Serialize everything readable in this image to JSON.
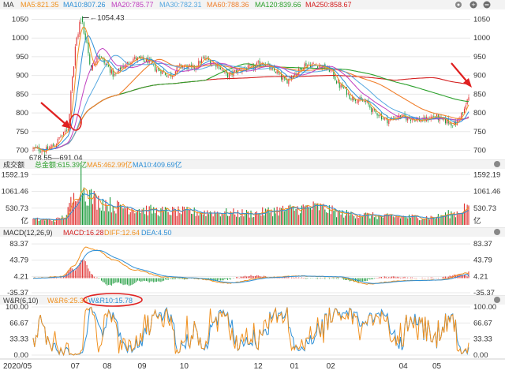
{
  "colors": {
    "up": "#e03030",
    "down": "#1a9a3a",
    "ma5": "#f0901e",
    "ma10": "#2d8fd6",
    "ma20": "#c040c0",
    "ma30": "#56a8e0",
    "ma60": "#f07f2c",
    "ma120": "#2ca02c",
    "ma250": "#d42020",
    "macd": "#d42020",
    "diff": "#f0901e",
    "dea": "#2d8fd6",
    "wr6": "#f0901e",
    "wr10": "#2d8fd6",
    "annotation": "#e02020",
    "grid": "#e8e8e8"
  },
  "panels": {
    "price": {
      "title": "MA",
      "legend": [
        {
          "label": "MA5:821.35",
          "color": "#f0901e"
        },
        {
          "label": "MA10:807.26",
          "color": "#2d8fd6"
        },
        {
          "label": "MA20:785.77",
          "color": "#c040c0"
        },
        {
          "label": "MA30:782.31",
          "color": "#56a8e0"
        },
        {
          "label": "MA60:788.36",
          "color": "#f07f2c"
        },
        {
          "label": "MA120:839.66",
          "color": "#2ca02c"
        },
        {
          "label": "MA250:858.67",
          "color": "#d42020"
        }
      ],
      "icons": [
        "gear-icon",
        "add-icon",
        "remove-icon"
      ]
    },
    "volume": {
      "title": "成交额",
      "legend": [
        {
          "label": "总金额:615.39亿",
          "color": "#2ca02c"
        },
        {
          "label": "MA5:462.99亿",
          "color": "#f0901e"
        },
        {
          "label": "MA10:409.69亿",
          "color": "#2d8fd6"
        }
      ],
      "unit": "亿",
      "icons": [
        "gear-icon"
      ]
    },
    "macd": {
      "title": "MACD(12,26,9)",
      "legend": [
        {
          "label": "MACD:16.28",
          "color": "#d42020"
        },
        {
          "label": "DIFF:12.64",
          "color": "#f0901e"
        },
        {
          "label": "DEA:4.50",
          "color": "#2d8fd6"
        }
      ],
      "icons": [
        "gear-icon"
      ]
    },
    "wr": {
      "title": "W&R(6,10)",
      "legend": [
        {
          "label": "W&R6:25.39",
          "color": "#f0901e"
        },
        {
          "label": "W&R10:15.78",
          "color": "#2d8fd6"
        }
      ],
      "icons": [
        "gear-icon"
      ]
    }
  },
  "chart_data": [
    {
      "type": "candlestick",
      "panel": "price",
      "title": "MA",
      "ylim": [
        680,
        1070
      ],
      "yticks": [
        "1050",
        "1000",
        "950",
        "900",
        "850",
        "800",
        "750",
        "700"
      ],
      "annotations": {
        "high_label": "1054.43",
        "low_label": "678.55—691.04"
      },
      "anchors": [
        [
          0,
          705
        ],
        [
          8,
          700
        ],
        [
          14,
          712
        ],
        [
          20,
          740
        ],
        [
          24,
          760
        ],
        [
          27,
          900
        ],
        [
          30,
          1000
        ],
        [
          33,
          1054
        ],
        [
          36,
          1000
        ],
        [
          40,
          920
        ],
        [
          45,
          955
        ],
        [
          50,
          930
        ],
        [
          56,
          900
        ],
        [
          62,
          925
        ],
        [
          70,
          945
        ],
        [
          78,
          940
        ],
        [
          86,
          915
        ],
        [
          94,
          900
        ],
        [
          102,
          925
        ],
        [
          110,
          920
        ],
        [
          118,
          945
        ],
        [
          126,
          930
        ],
        [
          134,
          900
        ],
        [
          142,
          915
        ],
        [
          150,
          920
        ],
        [
          158,
          935
        ],
        [
          166,
          912
        ],
        [
          174,
          885
        ],
        [
          180,
          905
        ],
        [
          188,
          930
        ],
        [
          196,
          928
        ],
        [
          204,
          915
        ],
        [
          212,
          870
        ],
        [
          220,
          840
        ],
        [
          228,
          830
        ],
        [
          236,
          800
        ],
        [
          244,
          780
        ],
        [
          252,
          790
        ],
        [
          260,
          785
        ],
        [
          268,
          780
        ],
        [
          276,
          790
        ],
        [
          284,
          778
        ],
        [
          290,
          770
        ],
        [
          296,
          800
        ],
        [
          300,
          840
        ]
      ],
      "series": [
        {
          "name": "MA5",
          "last": 821.35
        },
        {
          "name": "MA10",
          "last": 807.26
        },
        {
          "name": "MA20",
          "last": 785.77
        },
        {
          "name": "MA30",
          "last": 782.31
        },
        {
          "name": "MA60",
          "last": 788.36
        },
        {
          "name": "MA120",
          "last": 839.66
        },
        {
          "name": "MA250",
          "last": 858.67
        }
      ]
    },
    {
      "type": "bar",
      "panel": "volume",
      "title": "成交额",
      "ylim": [
        0,
        1700
      ],
      "yticks": [
        "1592.19",
        "1061.46",
        "530.73"
      ],
      "anchors": [
        [
          0,
          170
        ],
        [
          15,
          160
        ],
        [
          22,
          250
        ],
        [
          27,
          750
        ],
        [
          31,
          1250
        ],
        [
          33,
          1550
        ],
        [
          36,
          1000
        ],
        [
          45,
          750
        ],
        [
          60,
          560
        ],
        [
          90,
          430
        ],
        [
          120,
          400
        ],
        [
          150,
          360
        ],
        [
          170,
          470
        ],
        [
          195,
          560
        ],
        [
          215,
          350
        ],
        [
          245,
          260
        ],
        [
          275,
          240
        ],
        [
          290,
          360
        ],
        [
          300,
          615
        ]
      ],
      "series": [
        {
          "name": "总金额",
          "last": 615.39
        },
        {
          "name": "MA5",
          "last": 462.99
        },
        {
          "name": "MA10",
          "last": 409.69
        }
      ]
    },
    {
      "type": "bar",
      "panel": "macd",
      "title": "MACD(12,26,9)",
      "ylim": [
        -45,
        95
      ],
      "yticks": [
        "83.37",
        "43.79",
        "4.21",
        "-35.37"
      ],
      "diff_anchors": [
        [
          0,
          0
        ],
        [
          20,
          4
        ],
        [
          28,
          30
        ],
        [
          36,
          75
        ],
        [
          44,
          68
        ],
        [
          55,
          45
        ],
        [
          70,
          20
        ],
        [
          90,
          3
        ],
        [
          110,
          0
        ],
        [
          135,
          -12
        ],
        [
          160,
          2
        ],
        [
          185,
          5
        ],
        [
          210,
          3
        ],
        [
          230,
          -14
        ],
        [
          255,
          -6
        ],
        [
          280,
          -4
        ],
        [
          300,
          12.64
        ]
      ],
      "series": [
        {
          "name": "MACD",
          "last": 16.28
        },
        {
          "name": "DIFF",
          "last": 12.64
        },
        {
          "name": "DEA",
          "last": 4.5
        }
      ]
    },
    {
      "type": "line",
      "panel": "wr",
      "title": "W&R(6,10)",
      "ylim": [
        0,
        100
      ],
      "yticks": [
        "100.00",
        "66.67",
        "33.33",
        "0.00"
      ],
      "series": [
        {
          "name": "W&R6",
          "last": 25.39
        },
        {
          "name": "W&R10",
          "last": 15.78
        }
      ]
    }
  ],
  "x_axis": {
    "labels": [
      "2020/05",
      "07",
      "08",
      "09",
      "10",
      "12",
      "01",
      "02",
      "04",
      "05"
    ],
    "label_index": [
      0,
      29,
      51,
      75,
      104,
      155,
      180,
      205,
      255,
      278
    ],
    "n_bars": 301
  }
}
